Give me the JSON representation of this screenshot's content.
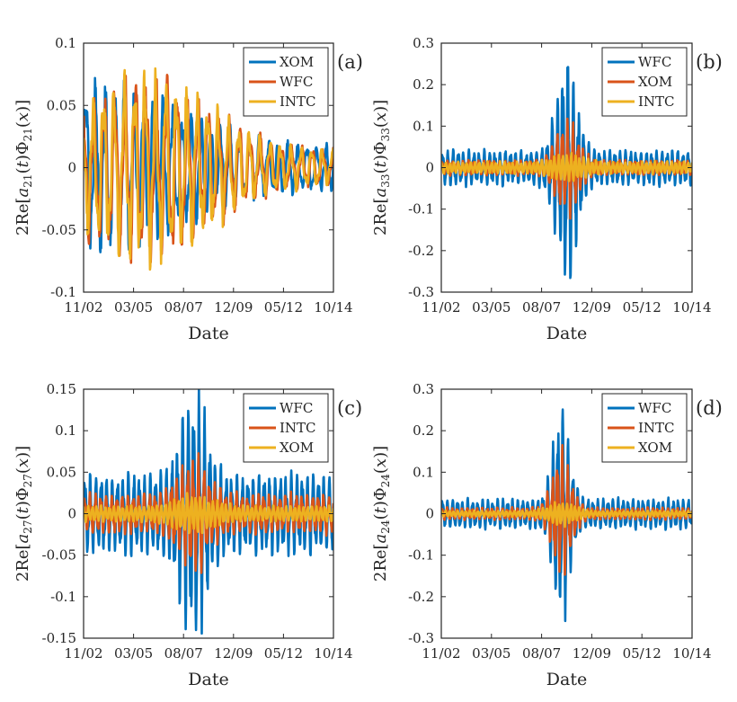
{
  "chart_data": [
    {
      "type": "line",
      "panel_label": "(a)",
      "xlabel": "Date",
      "ylabel": "2Re[a21(t)Φ21(x)]",
      "ylabel_parts": [
        "2Re[",
        "a",
        "21",
        "(",
        "t",
        ")Φ",
        "21",
        "(",
        "x",
        ")]"
      ],
      "x_ticks": [
        "11/02",
        "03/05",
        "08/07",
        "12/09",
        "05/12",
        "10/14"
      ],
      "ylim": [
        -0.1,
        0.1
      ],
      "y_ticks": [
        -0.1,
        -0.05,
        0,
        0.05,
        0.1
      ],
      "y_tick_labels": [
        "-0.1",
        "-0.05",
        "0",
        "0.05",
        "0.1"
      ],
      "series": [
        {
          "name": "XOM",
          "color": "#0072BD",
          "amp_peak": 0.06,
          "amp_base": 0.015,
          "peak_at": 0.05,
          "width": 0.45,
          "cycles": 26,
          "phase": 0.0
        },
        {
          "name": "WFC",
          "color": "#D95319",
          "amp_peak": 0.065,
          "amp_base": 0.012,
          "peak_at": 0.25,
          "width": 0.35,
          "cycles": 24,
          "phase": 1.6
        },
        {
          "name": "INTC",
          "color": "#EDB120",
          "amp_peak": 0.065,
          "amp_base": 0.012,
          "peak_at": 0.25,
          "width": 0.35,
          "cycles": 24,
          "phase": 2.2
        }
      ]
    },
    {
      "type": "line",
      "panel_label": "(b)",
      "xlabel": "Date",
      "ylabel": "2Re[a33(t)Φ33(x)]",
      "ylabel_parts": [
        "2Re[",
        "a",
        "33",
        "(",
        "t",
        ")Φ",
        "33",
        "(",
        "x",
        ")]"
      ],
      "x_ticks": [
        "11/02",
        "03/05",
        "08/07",
        "12/09",
        "05/12",
        "10/14"
      ],
      "ylim": [
        -0.3,
        0.3
      ],
      "y_ticks": [
        -0.3,
        -0.2,
        -0.1,
        0,
        0.1,
        0.2,
        0.3
      ],
      "y_tick_labels": [
        "-0.3",
        "-0.2",
        "-0.1",
        "0",
        "0.1",
        "0.2",
        "0.3"
      ],
      "series": [
        {
          "name": "WFC",
          "color": "#0072BD",
          "amp_peak": 0.24,
          "amp_base": 0.035,
          "peak_at": 0.5,
          "width": 0.055,
          "cycles": 48,
          "phase": 0.0
        },
        {
          "name": "XOM",
          "color": "#D95319",
          "amp_peak": 0.1,
          "amp_base": 0.015,
          "peak_at": 0.5,
          "width": 0.06,
          "cycles": 48,
          "phase": 0.4
        },
        {
          "name": "INTC",
          "color": "#EDB120",
          "amp_peak": 0.03,
          "amp_base": 0.012,
          "peak_at": 0.5,
          "width": 0.08,
          "cycles": 60,
          "phase": 1.1
        }
      ]
    },
    {
      "type": "line",
      "panel_label": "(c)",
      "xlabel": "Date",
      "ylabel": "2Re[a27(t)Φ27(x)]",
      "ylabel_parts": [
        "2Re[",
        "a",
        "27",
        "(",
        "t",
        ")Φ",
        "27",
        "(",
        "x",
        ")]"
      ],
      "x_ticks": [
        "11/02",
        "03/05",
        "08/07",
        "12/09",
        "05/12",
        "10/14"
      ],
      "ylim": [
        -0.15,
        0.15
      ],
      "y_ticks": [
        -0.15,
        -0.1,
        -0.05,
        0,
        0.05,
        0.1,
        0.15
      ],
      "y_tick_labels": [
        "-0.15",
        "-0.1",
        "-0.05",
        "0",
        "0.05",
        "0.1",
        "0.15"
      ],
      "series": [
        {
          "name": "WFC",
          "color": "#0072BD",
          "amp_peak": 0.13,
          "amp_base": 0.04,
          "peak_at": 0.44,
          "width": 0.07,
          "cycles": 46,
          "phase": 0.0
        },
        {
          "name": "INTC",
          "color": "#D95319",
          "amp_peak": 0.06,
          "amp_base": 0.02,
          "peak_at": 0.44,
          "width": 0.08,
          "cycles": 46,
          "phase": 0.5
        },
        {
          "name": "XOM",
          "color": "#EDB120",
          "amp_peak": 0.02,
          "amp_base": 0.008,
          "peak_at": 0.44,
          "width": 0.1,
          "cycles": 58,
          "phase": 1.3
        }
      ]
    },
    {
      "type": "line",
      "panel_label": "(d)",
      "xlabel": "Date",
      "ylabel": "2Re[a24(t)Φ24(x)]",
      "ylabel_parts": [
        "2Re[",
        "a",
        "24",
        "(",
        "t",
        ")Φ",
        "24",
        "(",
        "x",
        ")]"
      ],
      "x_ticks": [
        "11/02",
        "03/05",
        "08/07",
        "12/09",
        "05/12",
        "10/14"
      ],
      "ylim": [
        -0.3,
        0.3
      ],
      "y_ticks": [
        -0.3,
        -0.2,
        -0.1,
        0,
        0.1,
        0.2,
        0.3
      ],
      "y_tick_labels": [
        "-0.3",
        "-0.2",
        "-0.1",
        "0",
        "0.1",
        "0.2",
        "0.3"
      ],
      "series": [
        {
          "name": "WFC",
          "color": "#0072BD",
          "amp_peak": 0.22,
          "amp_base": 0.03,
          "peak_at": 0.48,
          "width": 0.045,
          "cycles": 50,
          "phase": 0.0
        },
        {
          "name": "INTC",
          "color": "#D95319",
          "amp_peak": 0.13,
          "amp_base": 0.012,
          "peak_at": 0.48,
          "width": 0.05,
          "cycles": 50,
          "phase": 0.5
        },
        {
          "name": "XOM",
          "color": "#EDB120",
          "amp_peak": 0.025,
          "amp_base": 0.006,
          "peak_at": 0.48,
          "width": 0.07,
          "cycles": 62,
          "phase": 1.2
        }
      ]
    }
  ]
}
